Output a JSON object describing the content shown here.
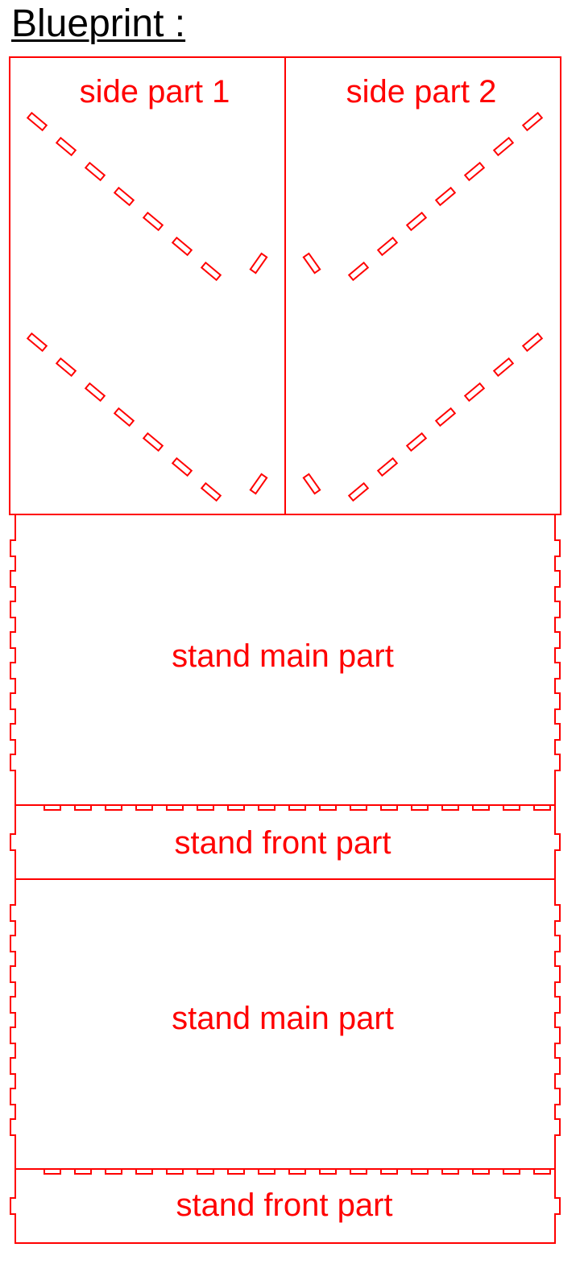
{
  "heading": "Blueprint :",
  "colors": {
    "line": "#ff0000",
    "heading": "#000000",
    "background": "#ffffff"
  },
  "parts": {
    "side_part_1": "side part 1",
    "side_part_2": "side part 2",
    "stand_main_1": "stand main part",
    "stand_front_1": "stand front part",
    "stand_main_2": "stand main part",
    "stand_front_2": "stand front part"
  }
}
